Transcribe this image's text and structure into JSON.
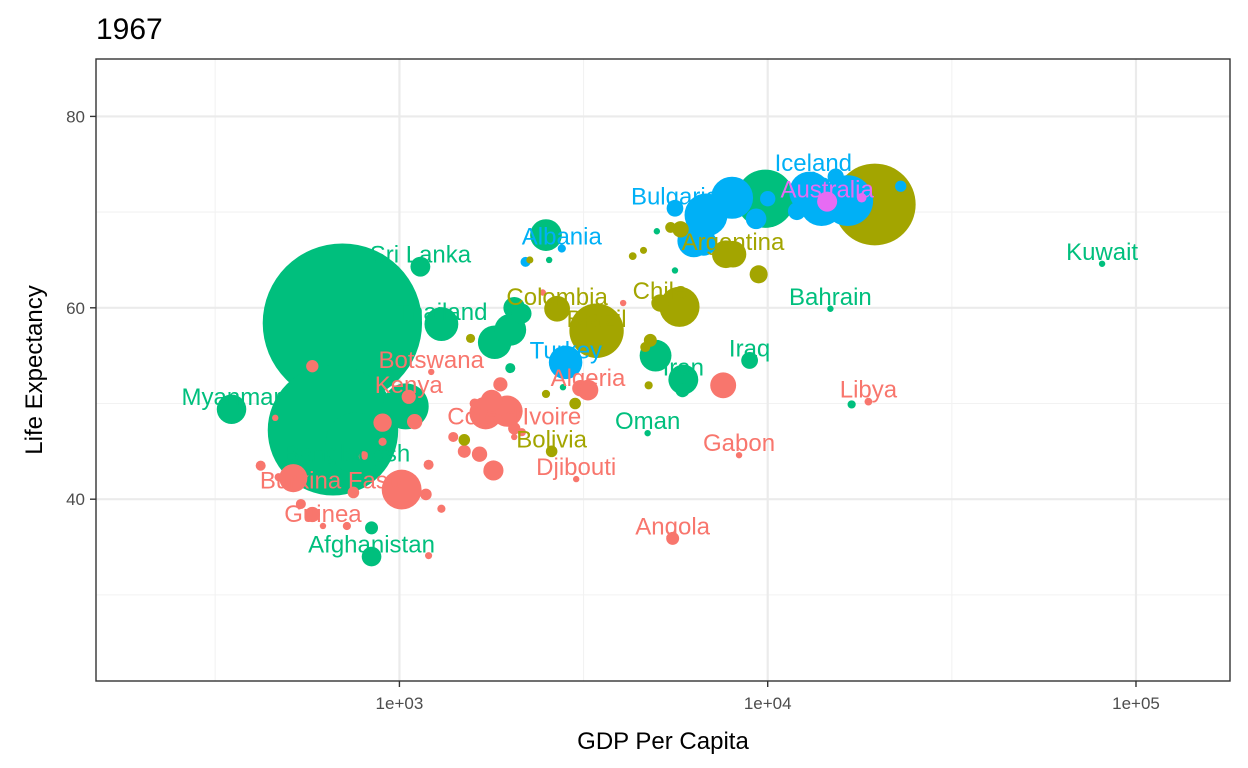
{
  "chart_data": {
    "type": "scatter",
    "title": "1967",
    "xlabel": "GDP Per Capita",
    "ylabel": "Life Expectancy",
    "x_scale": "log10",
    "xlim": [
      150,
      180000
    ],
    "ylim": [
      21,
      86
    ],
    "x_ticks": [
      1000,
      10000,
      100000
    ],
    "x_tick_labels": [
      "1e+03",
      "1e+04",
      "1e+05"
    ],
    "x_minor_ticks": [
      316,
      3162,
      31623
    ],
    "y_ticks": [
      40,
      60,
      80
    ],
    "y_tick_labels": [
      "40",
      "60",
      "80"
    ],
    "y_minor_ticks": [
      30,
      50,
      70
    ],
    "grid": true,
    "legend": "none",
    "colors": {
      "Africa": "#F8766D",
      "Americas": "#A3A500",
      "Asia": "#00BF7D",
      "Europe": "#00B0F6",
      "Oceania": "#E76BF3"
    },
    "labels": [
      {
        "text": "Iceland",
        "group": "Europe",
        "x": 13300,
        "y": 73.9
      },
      {
        "text": "Australia",
        "group": "Oceania",
        "x": 14500,
        "y": 71.1
      },
      {
        "text": "Bulgaria",
        "group": "Europe",
        "x": 5600,
        "y": 70.4
      },
      {
        "text": "Albania",
        "group": "Europe",
        "x": 2760,
        "y": 66.2
      },
      {
        "text": "Argentina",
        "group": "Americas",
        "x": 8050,
        "y": 65.6
      },
      {
        "text": "Kuwait",
        "group": "Asia",
        "x": 80900,
        "y": 64.6
      },
      {
        "text": "Sri Lanka",
        "group": "Asia",
        "x": 1140,
        "y": 64.3
      },
      {
        "text": "Bahrain",
        "group": "Asia",
        "x": 14800,
        "y": 59.9
      },
      {
        "text": "Chile",
        "group": "Americas",
        "x": 5100,
        "y": 60.5
      },
      {
        "text": "Colombia",
        "group": "Americas",
        "x": 2680,
        "y": 59.9
      },
      {
        "text": "Thailand",
        "group": "Asia",
        "x": 1300,
        "y": 58.3
      },
      {
        "text": "Brazil",
        "group": "Americas",
        "x": 3430,
        "y": 57.6
      },
      {
        "text": "Turkey",
        "group": "Europe",
        "x": 2830,
        "y": 54.3
      },
      {
        "text": "Botswana",
        "group": "Africa",
        "x": 1220,
        "y": 53.3
      },
      {
        "text": "Iraq",
        "group": "Asia",
        "x": 8930,
        "y": 54.5
      },
      {
        "text": "Iran",
        "group": "Asia",
        "x": 5900,
        "y": 52.5
      },
      {
        "text": "Algeria",
        "group": "Africa",
        "x": 3250,
        "y": 51.4
      },
      {
        "text": "Kenya",
        "group": "Africa",
        "x": 1060,
        "y": 50.7
      },
      {
        "text": "Myanmar",
        "group": "Asia",
        "x": 350,
        "y": 49.4
      },
      {
        "text": "Libya",
        "group": "Africa",
        "x": 18770,
        "y": 50.2
      },
      {
        "text": "Cote d'Ivoire",
        "group": "Africa",
        "x": 2050,
        "y": 47.4
      },
      {
        "text": "Oman",
        "group": "Asia",
        "x": 4720,
        "y": 46.9
      },
      {
        "text": "Bolivia",
        "group": "Americas",
        "x": 2590,
        "y": 45.0
      },
      {
        "text": "Gabon",
        "group": "Africa",
        "x": 8360,
        "y": 44.6
      },
      {
        "text": "Bangladesh",
        "group": "Asia",
        "x": 720,
        "y": 43.5
      },
      {
        "text": "Djibouti",
        "group": "Africa",
        "x": 3020,
        "y": 42.1
      },
      {
        "text": "Burkina Faso",
        "group": "Africa",
        "x": 650,
        "y": 40.7
      },
      {
        "text": "Angola",
        "group": "Africa",
        "x": 5520,
        "y": 35.9
      },
      {
        "text": "Guinea",
        "group": "Africa",
        "x": 620,
        "y": 37.2
      },
      {
        "text": "Afghanistan",
        "group": "Asia",
        "x": 840,
        "y": 34.0
      }
    ],
    "points": [
      {
        "group": "Asia",
        "x": 700,
        "y": 58.4,
        "pop": 754.6
      },
      {
        "group": "Asia",
        "x": 660,
        "y": 47.2,
        "pop": 506.0
      },
      {
        "group": "Americas",
        "x": 19530,
        "y": 70.8,
        "pop": 198.7
      },
      {
        "group": "Asia",
        "x": 9850,
        "y": 71.4,
        "pop": 100.8
      },
      {
        "group": "Americas",
        "x": 3430,
        "y": 57.6,
        "pop": 88.0
      },
      {
        "group": "Europe",
        "x": 16500,
        "y": 71.2,
        "pop": 76.4
      },
      {
        "group": "Asia",
        "x": 762,
        "y": 45.9,
        "pop": 109.3
      },
      {
        "group": "Asia",
        "x": 1040,
        "y": 49.7,
        "pop": 62.8
      },
      {
        "group": "Africa",
        "x": 1014,
        "y": 41.0,
        "pop": 47.3
      },
      {
        "group": "Americas",
        "x": 5760,
        "y": 60.1,
        "pop": 47.9
      },
      {
        "group": "Asia",
        "x": 1300,
        "y": 58.3,
        "pop": 34.0
      },
      {
        "group": "Asia",
        "x": 1814,
        "y": 56.4,
        "pop": 33.5
      },
      {
        "group": "Europe",
        "x": 8000,
        "y": 71.5,
        "pop": 52.7
      },
      {
        "group": "Europe",
        "x": 6800,
        "y": 69.7,
        "pop": 54.9
      },
      {
        "group": "Europe",
        "x": 14000,
        "y": 70.8,
        "pop": 55.2
      },
      {
        "group": "Europe",
        "x": 13000,
        "y": 72.1,
        "pop": 49.7
      },
      {
        "group": "Asia",
        "x": 4960,
        "y": 55.0,
        "pop": 30.1
      },
      {
        "group": "Africa",
        "x": 1715,
        "y": 49.0,
        "pop": 31.6
      },
      {
        "group": "Asia",
        "x": 350,
        "y": 49.4,
        "pop": 25.9
      },
      {
        "group": "Americas",
        "x": 7700,
        "y": 65.6,
        "pop": 22.9
      },
      {
        "group": "Asia",
        "x": 2500,
        "y": 67.6,
        "pop": 30.0
      },
      {
        "group": "Americas",
        "x": 2680,
        "y": 59.9,
        "pop": 19.8
      },
      {
        "group": "Europe",
        "x": 2826,
        "y": 54.3,
        "pop": 33.4
      },
      {
        "group": "Asia",
        "x": 5900,
        "y": 52.5,
        "pop": 26.5
      },
      {
        "group": "Africa",
        "x": 1960,
        "y": 49.2,
        "pop": 29.0
      },
      {
        "group": "Africa",
        "x": 7570,
        "y": 51.9,
        "pop": 20.0
      },
      {
        "group": "Africa",
        "x": 515,
        "y": 42.2,
        "pop": 23.5
      },
      {
        "group": "Europe",
        "x": 6300,
        "y": 67.0,
        "pop": 32.1
      },
      {
        "group": "Asia",
        "x": 2050,
        "y": 60.0,
        "pop": 14.0
      },
      {
        "group": "Asia",
        "x": 2145,
        "y": 59.4,
        "pop": 12.0
      },
      {
        "group": "Asia",
        "x": 2000,
        "y": 57.7,
        "pop": 30.0
      },
      {
        "group": "Africa",
        "x": 3250,
        "y": 51.4,
        "pop": 12.8
      },
      {
        "group": "Africa",
        "x": 1780,
        "y": 50.3,
        "pop": 14.0
      },
      {
        "group": "Africa",
        "x": 1180,
        "y": 40.5,
        "pop": 4.0
      },
      {
        "group": "Africa",
        "x": 1650,
        "y": 44.7,
        "pop": 7.0
      },
      {
        "group": "Africa",
        "x": 1800,
        "y": 43.0,
        "pop": 12.0
      },
      {
        "group": "Africa",
        "x": 1760,
        "y": 42.9,
        "pop": 5.0
      },
      {
        "group": "Asia",
        "x": 1140,
        "y": 64.3,
        "pop": 11.7
      },
      {
        "group": "Asia",
        "x": 8930,
        "y": 54.5,
        "pop": 8.4
      },
      {
        "group": "Asia",
        "x": 16900,
        "y": 49.9,
        "pop": 2.0
      },
      {
        "group": "Asia",
        "x": 840,
        "y": 34.0,
        "pop": 11.5
      },
      {
        "group": "Asia",
        "x": 840,
        "y": 37.0,
        "pop": 5.0
      },
      {
        "group": "Asia",
        "x": 700,
        "y": 41.8,
        "pop": 9.0
      },
      {
        "group": "Asia",
        "x": 5870,
        "y": 51.4,
        "pop": 6.0
      },
      {
        "group": "Asia",
        "x": 2000,
        "y": 53.7,
        "pop": 3.0
      },
      {
        "group": "Asia",
        "x": 5600,
        "y": 63.9,
        "pop": 1.0
      },
      {
        "group": "Asia",
        "x": 5000,
        "y": 68.0,
        "pop": 1.0
      },
      {
        "group": "Asia",
        "x": 2550,
        "y": 65.0,
        "pop": 1.0
      },
      {
        "group": "Asia",
        "x": 2780,
        "y": 51.7,
        "pop": 1.0
      },
      {
        "group": "Asia",
        "x": 4720,
        "y": 46.9,
        "pop": 0.6
      },
      {
        "group": "Asia",
        "x": 14800,
        "y": 59.9,
        "pop": 0.2
      },
      {
        "group": "Asia",
        "x": 80900,
        "y": 64.6,
        "pop": 0.5
      },
      {
        "group": "Europe",
        "x": 9300,
        "y": 69.3,
        "pop": 12.6
      },
      {
        "group": "Europe",
        "x": 15300,
        "y": 73.7,
        "pop": 7.9
      },
      {
        "group": "Europe",
        "x": 6700,
        "y": 66.8,
        "pop": 20.0
      },
      {
        "group": "Europe",
        "x": 5600,
        "y": 70.4,
        "pop": 8.3
      },
      {
        "group": "Europe",
        "x": 10000,
        "y": 71.4,
        "pop": 7.0
      },
      {
        "group": "Europe",
        "x": 14200,
        "y": 73.0,
        "pop": 4.0
      },
      {
        "group": "Europe",
        "x": 13300,
        "y": 73.9,
        "pop": 0.2
      },
      {
        "group": "Europe",
        "x": 22970,
        "y": 72.7,
        "pop": 3.8
      },
      {
        "group": "Europe",
        "x": 2760,
        "y": 66.2,
        "pop": 2.0
      },
      {
        "group": "Europe",
        "x": 2200,
        "y": 64.8,
        "pop": 3.0
      },
      {
        "group": "Europe",
        "x": 12000,
        "y": 70.1,
        "pop": 9.5
      },
      {
        "group": "Oceania",
        "x": 14500,
        "y": 71.1,
        "pop": 11.9
      },
      {
        "group": "Oceania",
        "x": 18000,
        "y": 71.5,
        "pop": 2.7
      },
      {
        "group": "Americas",
        "x": 5100,
        "y": 60.5,
        "pop": 9.0
      },
      {
        "group": "Americas",
        "x": 9450,
        "y": 63.5,
        "pop": 9.7
      },
      {
        "group": "Americas",
        "x": 8050,
        "y": 65.6,
        "pop": 21.0
      },
      {
        "group": "Americas",
        "x": 5800,
        "y": 68.2,
        "pop": 8.0
      },
      {
        "group": "Americas",
        "x": 4600,
        "y": 66.0,
        "pop": 1.5
      },
      {
        "group": "Americas",
        "x": 4300,
        "y": 65.4,
        "pop": 1.8
      },
      {
        "group": "Americas",
        "x": 4800,
        "y": 56.6,
        "pop": 5.0
      },
      {
        "group": "Americas",
        "x": 4650,
        "y": 55.9,
        "pop": 3.0
      },
      {
        "group": "Americas",
        "x": 4750,
        "y": 51.9,
        "pop": 2.0
      },
      {
        "group": "Americas",
        "x": 3000,
        "y": 50.0,
        "pop": 4.0
      },
      {
        "group": "Americas",
        "x": 2590,
        "y": 45.0,
        "pop": 4.0
      },
      {
        "group": "Americas",
        "x": 2500,
        "y": 51.0,
        "pop": 2.0
      },
      {
        "group": "Americas",
        "x": 1500,
        "y": 46.2,
        "pop": 4.0
      },
      {
        "group": "Americas",
        "x": 1560,
        "y": 56.8,
        "pop": 2.5
      },
      {
        "group": "Americas",
        "x": 2260,
        "y": 65.0,
        "pop": 1.5
      },
      {
        "group": "Americas",
        "x": 5450,
        "y": 68.4,
        "pop": 3.5
      },
      {
        "group": "Africa",
        "x": 580,
        "y": 53.9,
        "pop": 4.5
      },
      {
        "group": "Africa",
        "x": 1220,
        "y": 53.3,
        "pop": 0.6
      },
      {
        "group": "Africa",
        "x": 1880,
        "y": 52.0,
        "pop": 6.0
      },
      {
        "group": "Africa",
        "x": 1100,
        "y": 48.1,
        "pop": 7.0
      },
      {
        "group": "Africa",
        "x": 900,
        "y": 48.0,
        "pop": 10.0
      },
      {
        "group": "Africa",
        "x": 1600,
        "y": 50.0,
        "pop": 3.0
      },
      {
        "group": "Africa",
        "x": 1060,
        "y": 50.7,
        "pop": 6.0
      },
      {
        "group": "Africa",
        "x": 1400,
        "y": 46.5,
        "pop": 3.0
      },
      {
        "group": "Africa",
        "x": 1500,
        "y": 45.0,
        "pop": 5.0
      },
      {
        "group": "Africa",
        "x": 1200,
        "y": 43.6,
        "pop": 3.0
      },
      {
        "group": "Africa",
        "x": 800,
        "y": 44.5,
        "pop": 3.0
      },
      {
        "group": "Africa",
        "x": 900,
        "y": 46.0,
        "pop": 2.0
      },
      {
        "group": "Africa",
        "x": 580,
        "y": 38.4,
        "pop": 7.0
      },
      {
        "group": "Africa",
        "x": 540,
        "y": 39.5,
        "pop": 3.0
      },
      {
        "group": "Africa",
        "x": 420,
        "y": 43.5,
        "pop": 3.0
      },
      {
        "group": "Africa",
        "x": 470,
        "y": 42.3,
        "pop": 2.0
      },
      {
        "group": "Africa",
        "x": 750,
        "y": 40.7,
        "pop": 4.0
      },
      {
        "group": "Africa",
        "x": 620,
        "y": 37.2,
        "pop": 1.0
      },
      {
        "group": "Africa",
        "x": 720,
        "y": 37.2,
        "pop": 2.0
      },
      {
        "group": "Africa",
        "x": 1200,
        "y": 34.1,
        "pop": 1.5
      },
      {
        "group": "Africa",
        "x": 1300,
        "y": 39.0,
        "pop": 2.0
      },
      {
        "group": "Africa",
        "x": 2050,
        "y": 47.4,
        "pop": 4.5
      },
      {
        "group": "Africa",
        "x": 2150,
        "y": 47.0,
        "pop": 2.0
      },
      {
        "group": "Africa",
        "x": 1850,
        "y": 48.4,
        "pop": 2.5
      },
      {
        "group": "Africa",
        "x": 3100,
        "y": 51.6,
        "pop": 8.0
      },
      {
        "group": "Africa",
        "x": 3020,
        "y": 42.1,
        "pop": 0.1
      },
      {
        "group": "Africa",
        "x": 5520,
        "y": 35.9,
        "pop": 5.0
      },
      {
        "group": "Africa",
        "x": 8360,
        "y": 44.6,
        "pop": 0.5
      },
      {
        "group": "Africa",
        "x": 18770,
        "y": 50.2,
        "pop": 1.8
      },
      {
        "group": "Africa",
        "x": 2450,
        "y": 61.6,
        "pop": 0.3
      },
      {
        "group": "Africa",
        "x": 4050,
        "y": 60.5,
        "pop": 0.8
      },
      {
        "group": "Africa",
        "x": 2050,
        "y": 46.5,
        "pop": 0.5
      },
      {
        "group": "Africa",
        "x": 460,
        "y": 48.5,
        "pop": 0.8
      }
    ]
  }
}
